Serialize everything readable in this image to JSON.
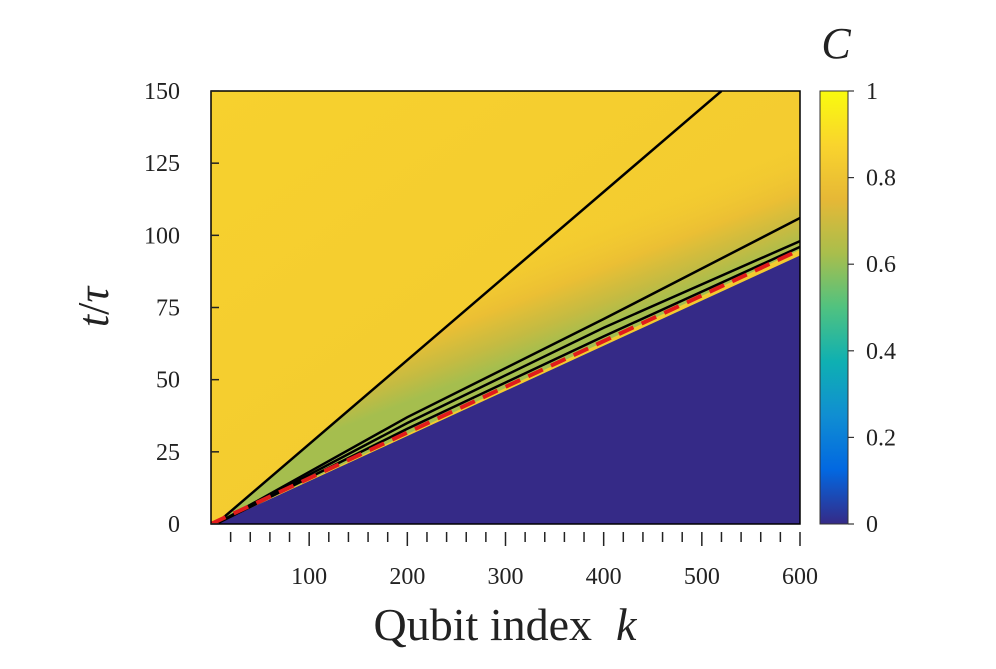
{
  "chart_data": {
    "type": "heatmap",
    "xlabel": "Qubit index",
    "xlabel_var": "k",
    "ylabel_var": "t",
    "ylabel_sep": "/",
    "ylabel_unit": "τ",
    "colorbar_label": "C",
    "xlim": [
      0,
      600
    ],
    "ylim": [
      0,
      150
    ],
    "x_ticks": [
      100,
      200,
      300,
      400,
      500,
      600
    ],
    "x_minor_step": 20,
    "y_ticks": [
      0,
      25,
      50,
      75,
      100,
      125,
      150
    ],
    "colorbar_range": [
      0,
      1
    ],
    "colorbar_ticks": [
      "0",
      "0.2",
      "0.4",
      "0.6",
      "0.8",
      "1"
    ],
    "colorbar_tick_values": [
      0,
      0.2,
      0.4,
      0.6,
      0.8,
      1
    ],
    "colormap": "parula",
    "colormap_stops": [
      "#352a87",
      "#0268e1",
      "#108ed2",
      "#0fb0b2",
      "#50c280",
      "#a9be4c",
      "#e6b836",
      "#f9d42d",
      "#f9fb0e"
    ],
    "region_values": {
      "below_front": 0.0,
      "far_above_front": 0.85,
      "near_front_above": 0.78
    },
    "contours": [
      {
        "name": "",
        "style": "solid",
        "color": "#000000",
        "points": [
          [
            5,
            0
          ],
          [
            520,
            150
          ]
        ]
      },
      {
        "name": "",
        "style": "solid",
        "color": "#000000",
        "points": [
          [
            5,
            0
          ],
          [
            200,
            37
          ],
          [
            400,
            71
          ],
          [
            600,
            106
          ]
        ]
      },
      {
        "name": "",
        "style": "solid",
        "color": "#000000",
        "points": [
          [
            5,
            0
          ],
          [
            200,
            35
          ],
          [
            400,
            68
          ],
          [
            600,
            98
          ]
        ]
      },
      {
        "name": "",
        "style": "solid",
        "color": "#000000",
        "points": [
          [
            5,
            0
          ],
          [
            200,
            33
          ],
          [
            400,
            65
          ],
          [
            600,
            96
          ]
        ]
      }
    ],
    "front_line": {
      "name": "",
      "style": "dashed",
      "color": "#e01b1b",
      "points": [
        [
          0,
          0
        ],
        [
          600,
          95
        ]
      ]
    }
  }
}
